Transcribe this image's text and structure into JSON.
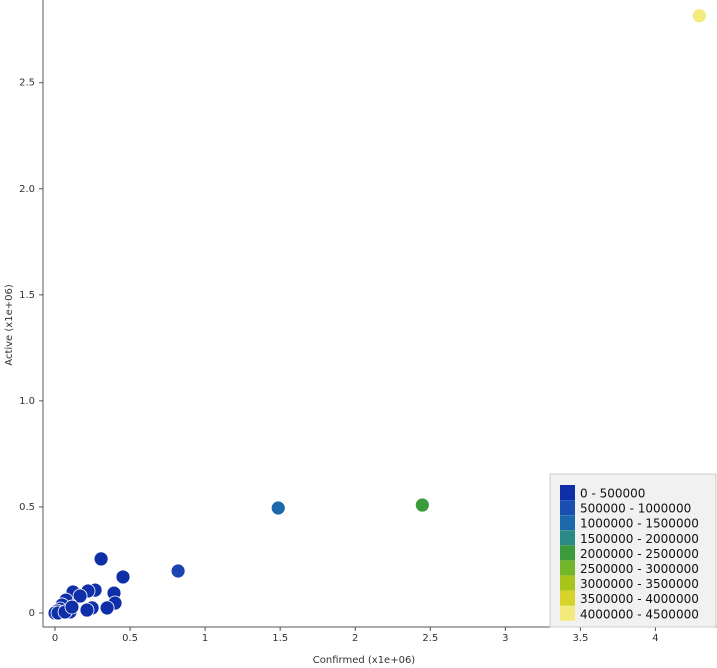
{
  "chart_data": {
    "type": "scatter",
    "x_label": "Confirmed (x1e+06)",
    "y_label": "Active (x1e+06)",
    "xlim": [
      -0.08,
      4.41
    ],
    "ylim": [
      -0.066,
      2.89
    ],
    "xticks": [
      0,
      0.5,
      1,
      1.5,
      2,
      2.5,
      3,
      3.5,
      4
    ],
    "yticks": [
      0,
      0.5,
      {
        "value": 1,
        "label": "1.0"
      },
      1.5,
      {
        "value": 2,
        "label": "2.0"
      },
      2.5
    ],
    "x": [
      4.293,
      1.487,
      2.447,
      0.82,
      0.307,
      0.453,
      0.393,
      0.4,
      0.347,
      0.267,
      0.22,
      0.12,
      0.167,
      0.247,
      0.213,
      0.1,
      0.073,
      0.047,
      0.033,
      0.013,
      0,
      0.02,
      0.1,
      0.067,
      0.113
    ],
    "y": [
      2.816,
      0.495,
      0.509,
      0.198,
      0.255,
      0.17,
      0.094,
      0.047,
      0.024,
      0.108,
      0.104,
      0.099,
      0.08,
      0.024,
      0.014,
      0.038,
      0.061,
      0.038,
      0.019,
      0.009,
      0,
      0,
      0.005,
      0.005,
      0.028
    ],
    "colors": [
      "#f3ea7e",
      "#1b69ab",
      "#3b9a3a",
      "#1a45b0",
      "#0f2fa8",
      "#0f2fa8",
      "#0f2fa8",
      "#0f2fa8",
      "#0f2fa8",
      "#0f2fa8",
      "#0f2fa8",
      "#0f2fa8",
      "#0f2fa8",
      "#0f2fa8",
      "#0f2fa8",
      "#0f2fa8",
      "#0f2fa8",
      "#0f2fa8",
      "#0f2fa8",
      "#0f2fa8",
      "#0f2fa8",
      "#0f2fa8",
      "#0f2fa8",
      "#0f2fa8",
      "#0f2fa8"
    ],
    "legend": [
      {
        "label": "0 - 500000",
        "color": "#0f2fa8"
      },
      {
        "label": "500000 - 1000000",
        "color": "#1a4fb2"
      },
      {
        "label": "1000000 - 1500000",
        "color": "#1b69ab"
      },
      {
        "label": "1500000 - 2000000",
        "color": "#2a8b86"
      },
      {
        "label": "2000000 - 2500000",
        "color": "#3b9a3a"
      },
      {
        "label": "2500000 - 3000000",
        "color": "#74b52a"
      },
      {
        "label": "3000000 - 3500000",
        "color": "#a9c51a"
      },
      {
        "label": "3500000 - 4000000",
        "color": "#d6d42a"
      },
      {
        "label": "4000000 - 4500000",
        "color": "#f3ea7e"
      }
    ]
  }
}
